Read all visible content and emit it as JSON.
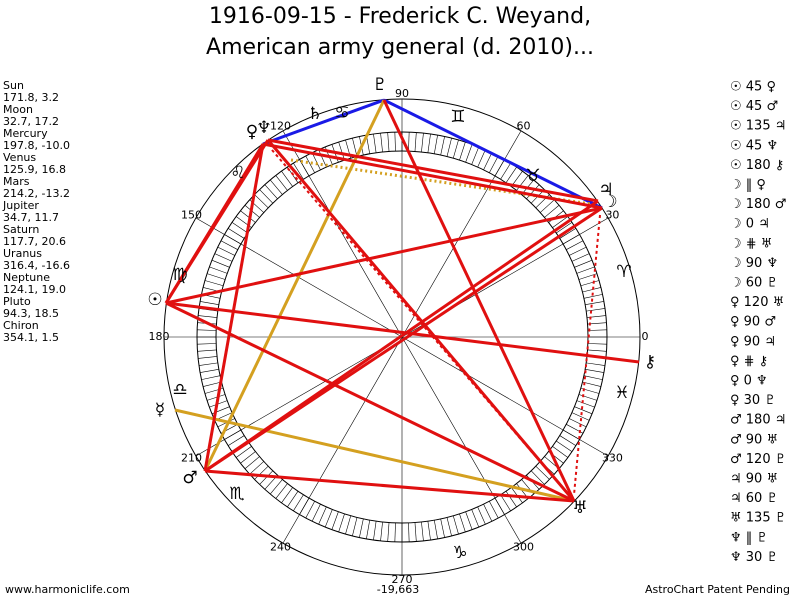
{
  "title": [
    "1916-09-15 - Frederick C. Weyand,",
    "American army general (d. 2010)..."
  ],
  "planets": [
    {
      "name": "Sun",
      "coords": "171.8, 3.2",
      "glyph": "☉"
    },
    {
      "name": "Moon",
      "coords": "32.7, 17.2",
      "glyph": "☽"
    },
    {
      "name": "Mercury",
      "coords": "197.8, -10.0",
      "glyph": "☿"
    },
    {
      "name": "Venus",
      "coords": "125.9, 16.8",
      "glyph": "♀"
    },
    {
      "name": "Mars",
      "coords": "214.2, -13.2",
      "glyph": "♂"
    },
    {
      "name": "Jupiter",
      "coords": "34.7, 11.7",
      "glyph": "♃"
    },
    {
      "name": "Saturn",
      "coords": "117.7, 20.6",
      "glyph": "♄"
    },
    {
      "name": "Uranus",
      "coords": "316.4, -16.6",
      "glyph": "♅"
    },
    {
      "name": "Neptune",
      "coords": "124.1, 19.0",
      "glyph": "♆"
    },
    {
      "name": "Pluto",
      "coords": "94.3, 18.5",
      "glyph": "♇"
    },
    {
      "name": "Chiron",
      "coords": "354.1, 1.5",
      "glyph": "⚷"
    }
  ],
  "aspects": [
    "☉ 45 ♀",
    "☉ 45 ♂",
    "☉ 135 ♃",
    "☉ 45 ♆",
    "☉ 180 ⚷",
    "☽ ‖ ♀",
    "☽ 180 ♂",
    "☽ 0 ♃",
    "☽ ⋕ ♅",
    "☽ 90 ♆",
    "☽ 60 ♇",
    "♀ 120 ♅",
    "♀ 90 ♂",
    "♀ 90 ♃",
    "♀ ⋕ ⚷",
    "♀ 0 ♆",
    "♀ 30 ♇",
    "♂ 180 ♃",
    "♂ 90 ♅",
    "♂ 120 ♇",
    "♃ 90 ♅",
    "♃ 60 ♇",
    "♅ 135 ♇",
    "♆ ‖ ♇",
    "♆ 30 ♇"
  ],
  "degrees": [
    "0",
    "30",
    "60",
    "90",
    "120",
    "150",
    "180",
    "210",
    "240",
    "270",
    "300",
    "330"
  ],
  "zodiac": [
    "♈",
    "♉",
    "♊",
    "♋",
    "♌",
    "♍",
    "♎",
    "♏",
    "♑",
    "♓"
  ],
  "footer": {
    "left": "www.harmoniclife.com",
    "center": "-19,663",
    "right": "AstroChart Patent Pending"
  }
}
